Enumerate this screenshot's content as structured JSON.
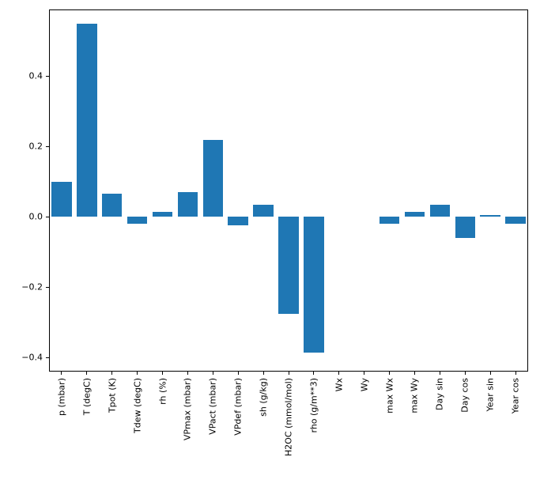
{
  "chart_data": {
    "type": "bar",
    "categories": [
      "p (mbar)",
      "T (degC)",
      "Tpot (K)",
      "Tdew (degC)",
      "rh (%)",
      "VPmax (mbar)",
      "VPact (mbar)",
      "VPdef (mbar)",
      "sh (g/kg)",
      "H2OC (mmol/mol)",
      "rho (g/m**3)",
      "Wx",
      "Wy",
      "max Wx",
      "max Wy",
      "Day sin",
      "Day cos",
      "Year sin",
      "Year cos"
    ],
    "values": [
      0.1,
      0.55,
      0.065,
      -0.02,
      0.015,
      0.07,
      0.22,
      -0.025,
      0.035,
      -0.275,
      -0.385,
      0.0,
      0.0,
      -0.02,
      0.015,
      0.035,
      -0.06,
      0.005,
      -0.02
    ],
    "title": "",
    "xlabel": "",
    "ylabel": "",
    "ylim": [
      -0.44,
      0.59
    ],
    "yticks": [
      -0.4,
      -0.2,
      0.0,
      0.2,
      0.4
    ],
    "bar_color": "#1f77b4",
    "grid": false,
    "legend": null
  }
}
